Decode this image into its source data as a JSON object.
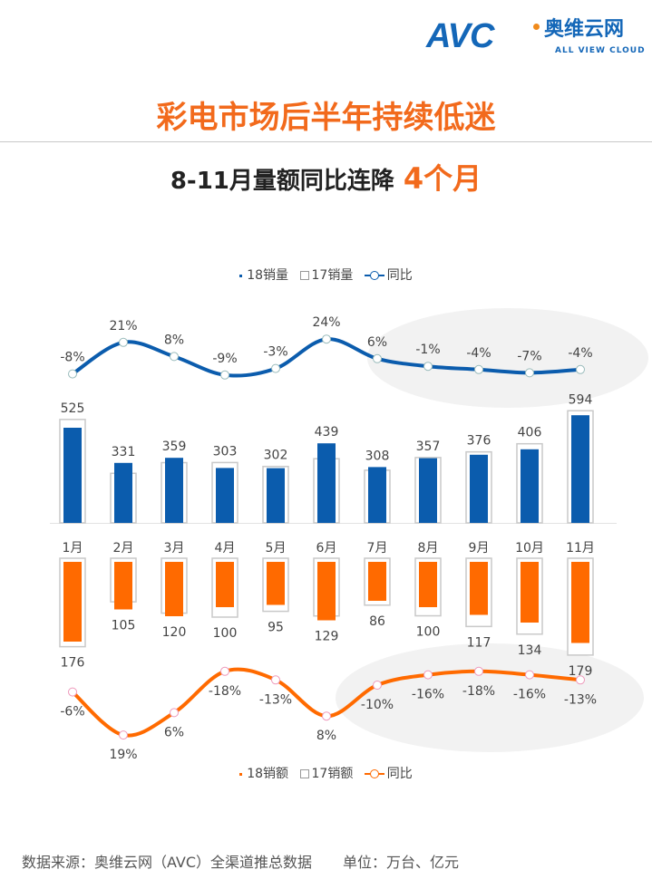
{
  "logo": {
    "mark": "AVC",
    "cn": "奥维云网",
    "en": "ALL VIEW CLOUD"
  },
  "title": "彩电市场后半年持续低迷",
  "subtitle": {
    "text": "8-11月量额同比连降",
    "highlight": "4个月"
  },
  "colors": {
    "volume": "#0b5cad",
    "amount": "#ff6a00",
    "title": "#f26a1c",
    "box": "#c9c9c9"
  },
  "chart_data": [
    {
      "type": "bar",
      "categories": [
        "1月",
        "2月",
        "3月",
        "4月",
        "5月",
        "6月",
        "7月",
        "8月",
        "9月",
        "10月",
        "11月"
      ],
      "series": [
        {
          "name": "18销量",
          "values": [
            525,
            331,
            359,
            303,
            302,
            439,
            308,
            357,
            376,
            406,
            594
          ]
        },
        {
          "name": "同比",
          "type": "line",
          "values": [
            -8,
            21,
            8,
            -9,
            -3,
            24,
            6,
            -1,
            -4,
            -7,
            -4
          ],
          "labels": [
            "-8%",
            "21%",
            "8%",
            "-9%",
            "-3%",
            "24%",
            "6%",
            "-1%",
            "-4%",
            "-7%",
            "-4%"
          ]
        }
      ],
      "comparison_series_name": "17销量",
      "legend": [
        "18销量",
        "17销量",
        "同比"
      ],
      "legend_position": "top",
      "grid": false
    },
    {
      "type": "bar",
      "categories": [
        "1月",
        "2月",
        "3月",
        "4月",
        "5月",
        "6月",
        "7月",
        "8月",
        "9月",
        "10月",
        "11月"
      ],
      "series": [
        {
          "name": "18销额",
          "values": [
            176,
            105,
            120,
            100,
            95,
            129,
            86,
            100,
            117,
            134,
            179
          ]
        },
        {
          "name": "同比",
          "type": "line",
          "values": [
            -6,
            19,
            6,
            -18,
            -13,
            8,
            -10,
            -16,
            -18,
            -16,
            -13
          ],
          "labels": [
            "-6%",
            "19%",
            "6%",
            "-18%",
            "-13%",
            "8%",
            "-10%",
            "-16%",
            "-18%",
            "-16%",
            "-13%"
          ]
        }
      ],
      "comparison_series_name": "17销额",
      "legend": [
        "18销额",
        "17销额",
        "同比"
      ],
      "legend_position": "bottom",
      "grid": false
    }
  ],
  "footer": {
    "source": "数据来源：奥维云网（AVC）全渠道推总数据",
    "unit": "单位：万台、亿元"
  }
}
